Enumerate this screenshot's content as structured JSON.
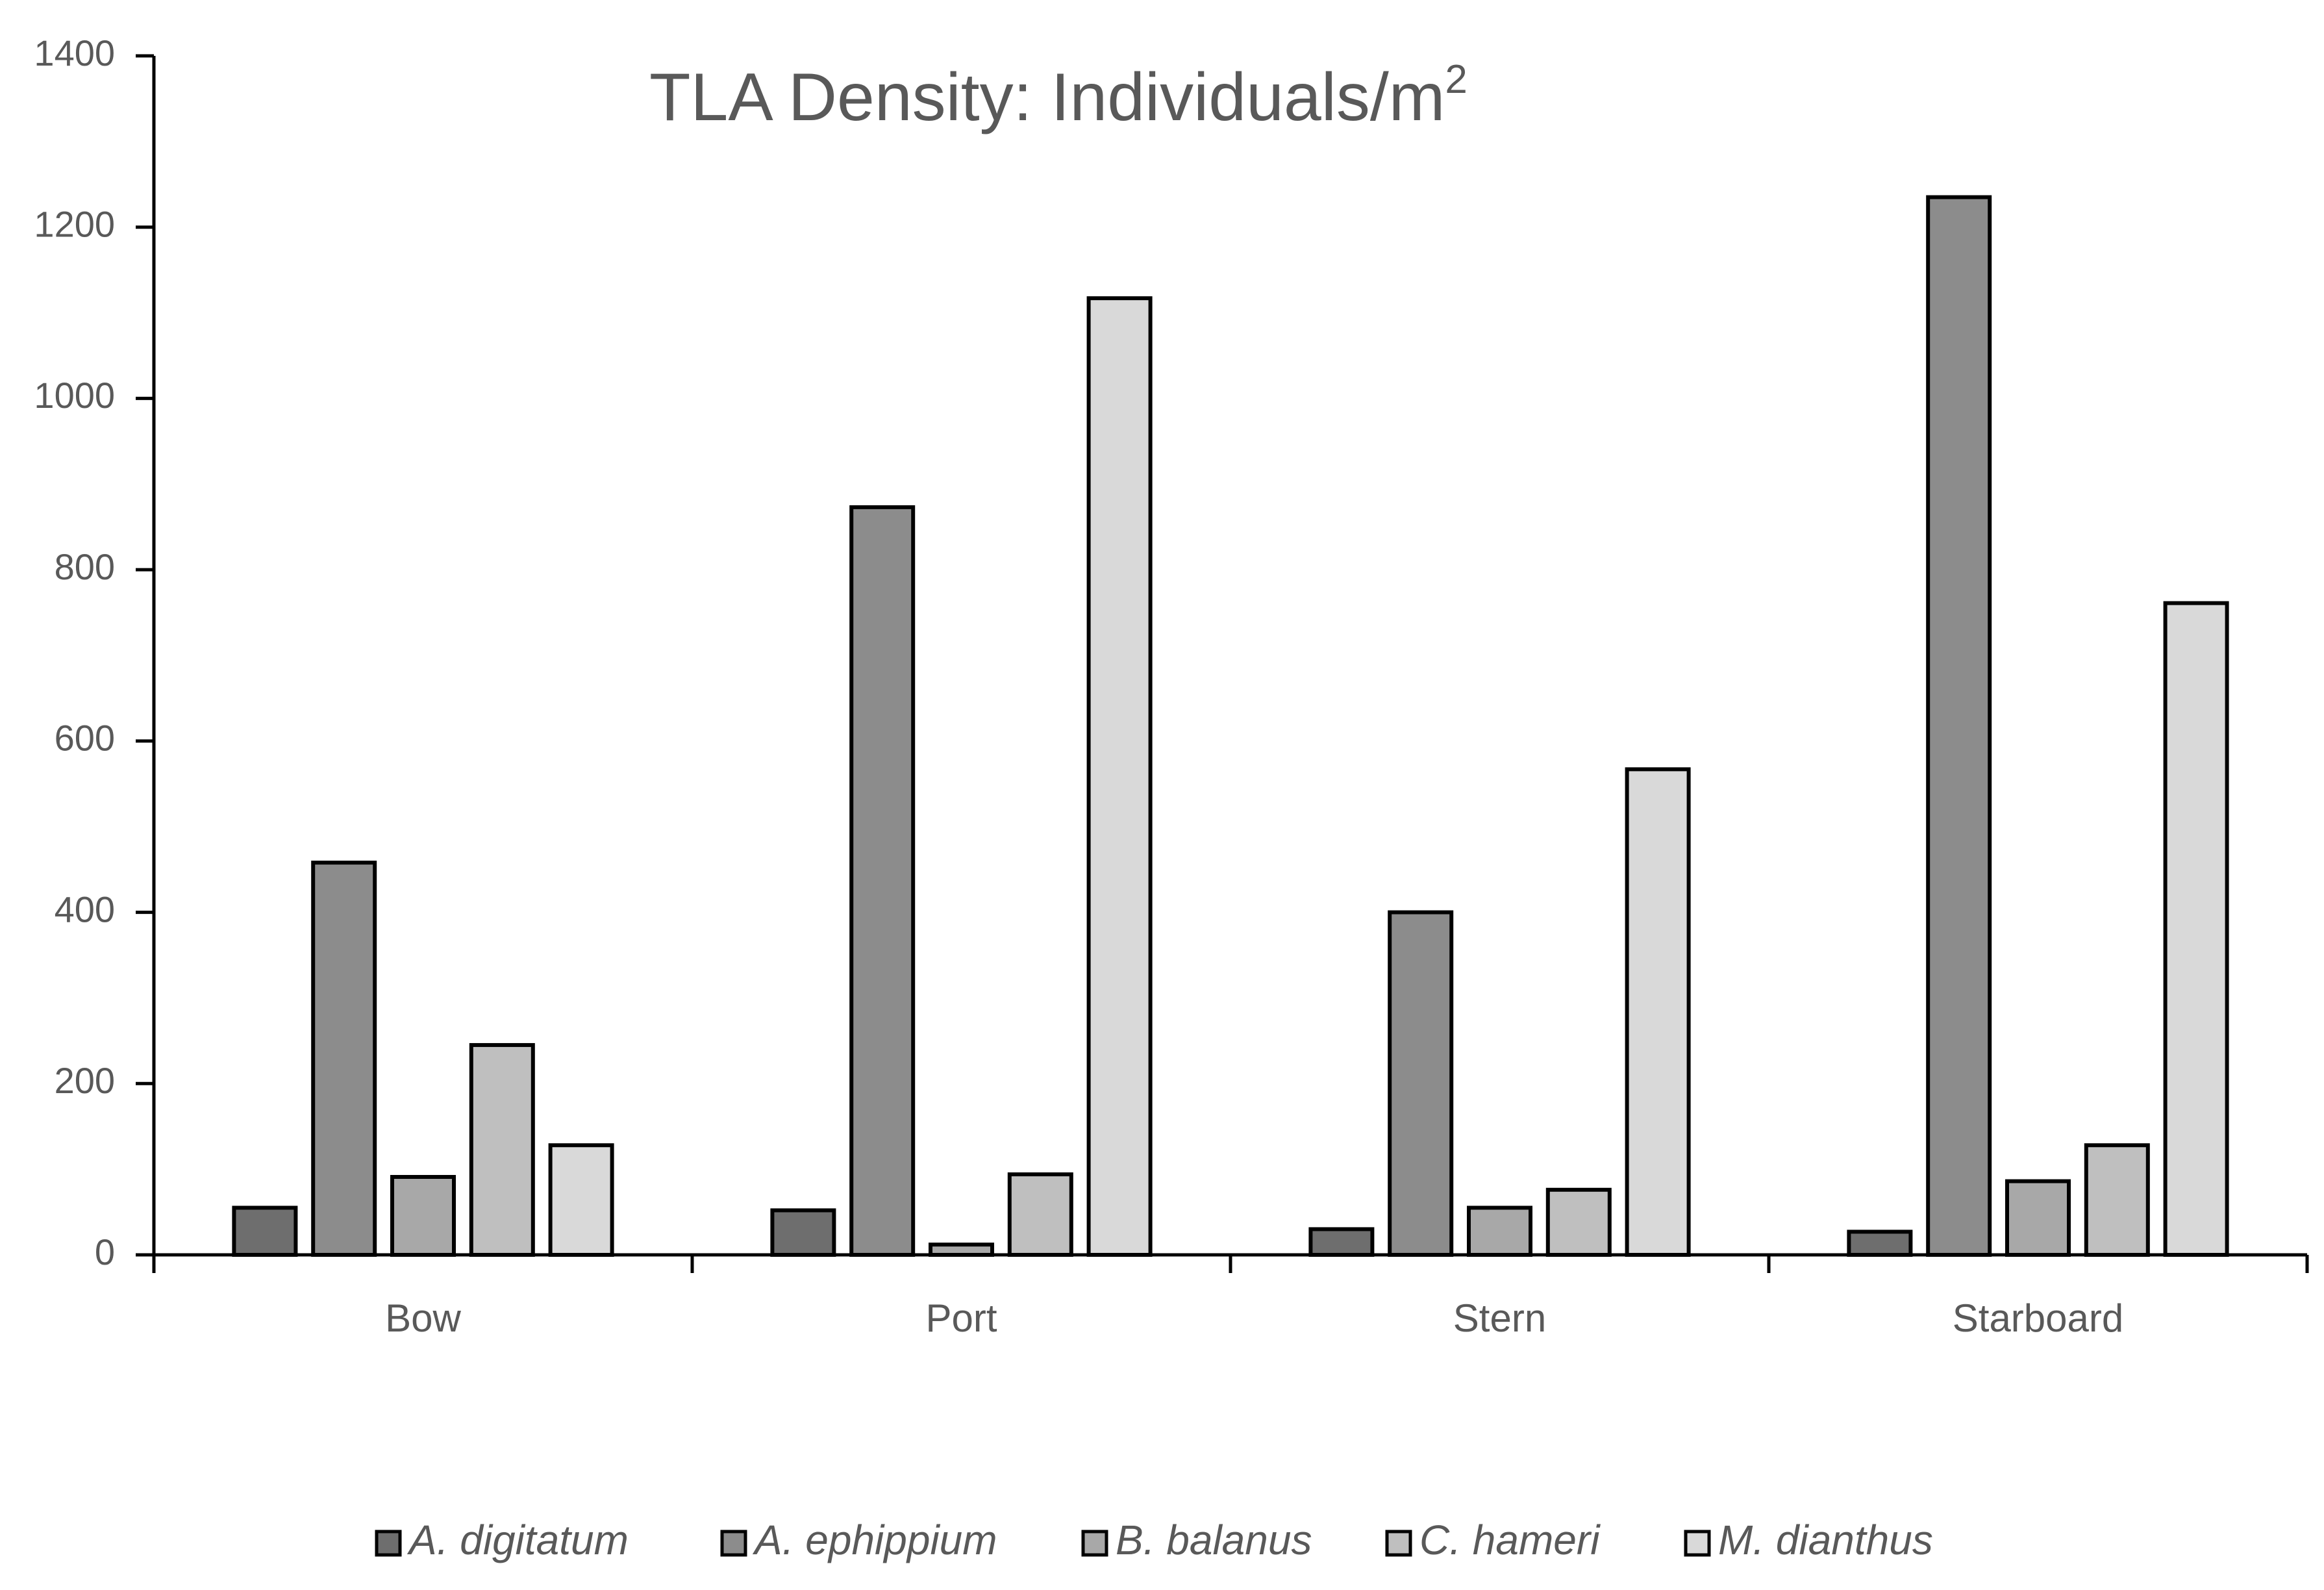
{
  "chart_data": {
    "type": "bar",
    "title": "TLA Density: Individuals/m",
    "title_superscript": "2",
    "xlabel": "",
    "ylabel": "",
    "ylim": [
      0,
      1400
    ],
    "y_ticks": [
      "0",
      "200",
      "400",
      "600",
      "800",
      "1000",
      "1200",
      "1400"
    ],
    "categories": [
      "Bow",
      "Port",
      "Stern",
      "Starboard"
    ],
    "series": [
      {
        "name": "A. digitatum",
        "color": "#6e6e6e",
        "values": [
          55,
          52,
          30,
          27
        ]
      },
      {
        "name": "A. ephippium",
        "color": "#8c8c8c",
        "values": [
          458,
          873,
          400,
          1235
        ]
      },
      {
        "name": "B. balanus",
        "color": "#a8a8a8",
        "values": [
          91,
          12,
          55,
          86
        ]
      },
      {
        "name": "C. hameri",
        "color": "#bfbfbf",
        "values": [
          245,
          94,
          76,
          128
        ]
      },
      {
        "name": "M. dianthus",
        "color": "#d9d9d9",
        "values": [
          128,
          1117,
          567,
          761
        ]
      }
    ],
    "legend_position": "bottom",
    "grid": false
  }
}
